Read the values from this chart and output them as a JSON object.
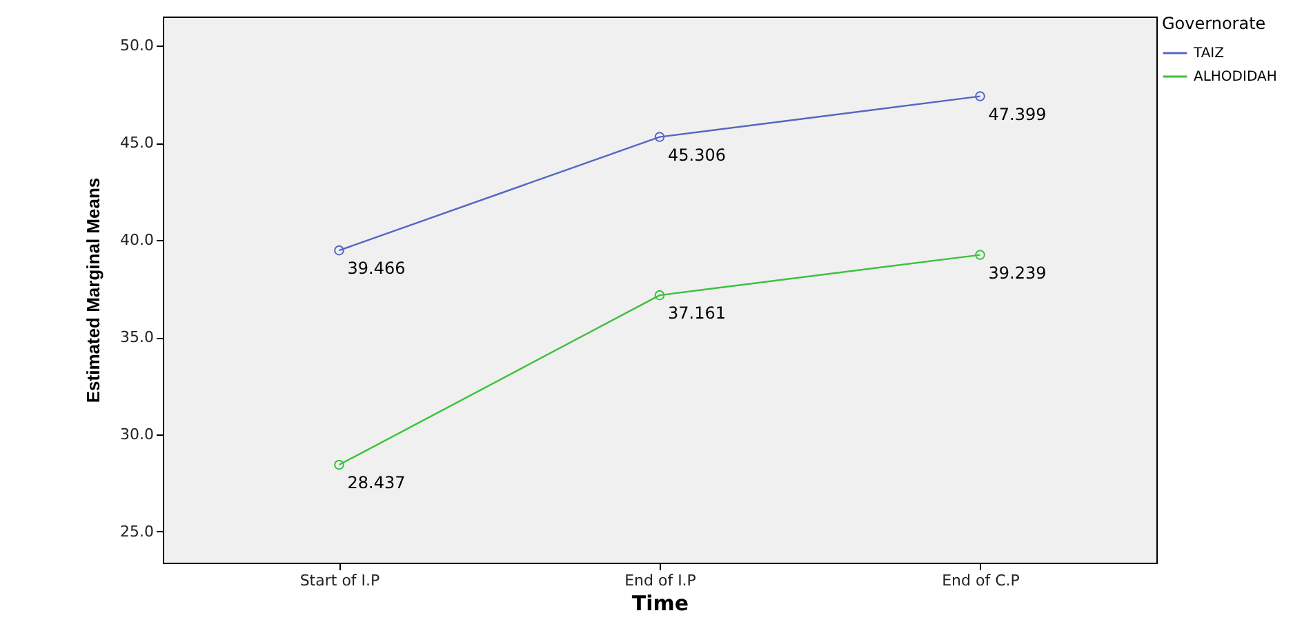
{
  "chart_data": {
    "type": "line",
    "xlabel": "Time",
    "ylabel": "Estimated Marginal Means",
    "legend_title": "Governorate",
    "categories": [
      "Start of I.P",
      "End of I.P",
      "End of C.P"
    ],
    "series": [
      {
        "name": "TAIZ",
        "color": "#5467c2",
        "values": [
          39.466,
          45.306,
          47.399
        ]
      },
      {
        "name": "ALHODIDAH",
        "color": "#3cc13c",
        "values": [
          28.437,
          37.161,
          39.239
        ]
      }
    ],
    "ylim": [
      23.4,
      51.5
    ],
    "yticks": [
      {
        "value": 25,
        "label": "25.0"
      },
      {
        "value": 30,
        "label": "30.0"
      },
      {
        "value": 35,
        "label": "35.0"
      },
      {
        "value": 40,
        "label": "40.0"
      },
      {
        "value": 45,
        "label": "45.0"
      },
      {
        "value": 50,
        "label": "50.0"
      }
    ],
    "data_labels": true,
    "grid": false,
    "legend": "top right",
    "marker": "circle",
    "line_style": "solid"
  }
}
